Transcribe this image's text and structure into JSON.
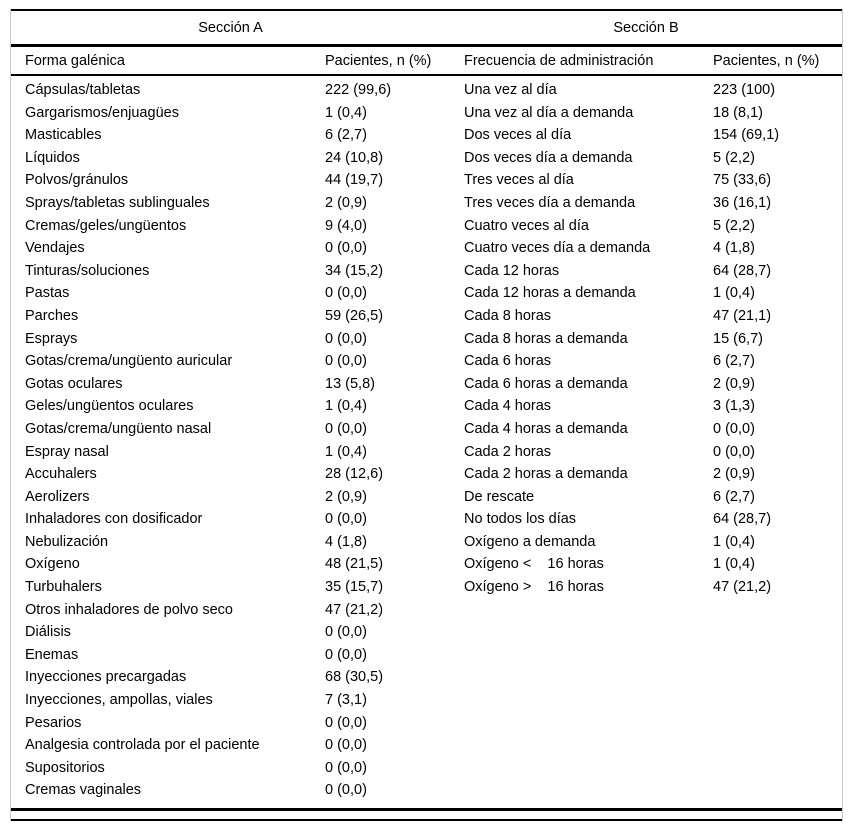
{
  "table": {
    "section_a": {
      "title": "Sección A",
      "label_header": "Forma galénica",
      "value_header": "Pacientes, n (%)",
      "rows": [
        {
          "label": "Cápsulas/tabletas",
          "value": "222 (99,6)"
        },
        {
          "label": "Gargarismos/enjuagües",
          "value": "1 (0,4)"
        },
        {
          "label": "Masticables",
          "value": "6 (2,7)"
        },
        {
          "label": "Líquidos",
          "value": "24 (10,8)"
        },
        {
          "label": "Polvos/gránulos",
          "value": "44 (19,7)"
        },
        {
          "label": "Sprays/tabletas sublinguales",
          "value": "2 (0,9)"
        },
        {
          "label": "Cremas/geles/ungüentos",
          "value": "9 (4,0)"
        },
        {
          "label": "Vendajes",
          "value": "0 (0,0)"
        },
        {
          "label": "Tinturas/soluciones",
          "value": "34 (15,2)"
        },
        {
          "label": "Pastas",
          "value": "0 (0,0)"
        },
        {
          "label": "Parches",
          "value": "59 (26,5)"
        },
        {
          "label": "Esprays",
          "value": "0 (0,0)"
        },
        {
          "label": "Gotas/crema/ungüento auricular",
          "value": "0 (0,0)"
        },
        {
          "label": "Gotas oculares",
          "value": "13 (5,8)"
        },
        {
          "label": "Geles/ungüentos oculares",
          "value": "1 (0,4)"
        },
        {
          "label": "Gotas/crema/ungüento nasal",
          "value": "0 (0,0)"
        },
        {
          "label": "Espray nasal",
          "value": "1 (0,4)"
        },
        {
          "label": "Accuhalers",
          "value": "28 (12,6)"
        },
        {
          "label": "Aerolizers",
          "value": "2 (0,9)"
        },
        {
          "label": "Inhaladores con dosificador",
          "value": "0 (0,0)"
        },
        {
          "label": "Nebulización",
          "value": "4 (1,8)"
        },
        {
          "label": "Oxígeno",
          "value": "48 (21,5)"
        },
        {
          "label": "Turbuhalers",
          "value": "35 (15,7)"
        },
        {
          "label": "Otros inhaladores de polvo seco",
          "value": "47 (21,2)"
        },
        {
          "label": "Diálisis",
          "value": "0 (0,0)"
        },
        {
          "label": "Enemas",
          "value": "0 (0,0)"
        },
        {
          "label": "Inyecciones precargadas",
          "value": "68 (30,5)"
        },
        {
          "label": "Inyecciones, ampollas, viales",
          "value": "7 (3,1)"
        },
        {
          "label": "Pesarios",
          "value": "0 (0,0)"
        },
        {
          "label": "Analgesia controlada por el paciente",
          "value": "0 (0,0)"
        },
        {
          "label": "Supositorios",
          "value": "0 (0,0)"
        },
        {
          "label": "Cremas vaginales",
          "value": "0 (0,0)"
        }
      ]
    },
    "section_b": {
      "title": "Sección B",
      "label_header": "Frecuencia de administración",
      "value_header": "Pacientes, n (%)",
      "rows": [
        {
          "label": "Una vez al día",
          "value": "223 (100)"
        },
        {
          "label": "Una vez al día a demanda",
          "value": "18 (8,1)"
        },
        {
          "label": "Dos veces al día",
          "value": "154 (69,1)"
        },
        {
          "label": "Dos veces día a demanda",
          "value": "5 (2,2)"
        },
        {
          "label": "Tres veces al día",
          "value": "75 (33,6)"
        },
        {
          "label": "Tres veces día a demanda",
          "value": "36 (16,1)"
        },
        {
          "label": "Cuatro veces al día",
          "value": "5 (2,2)"
        },
        {
          "label": "Cuatro veces día a demanda",
          "value": "4 (1,8)"
        },
        {
          "label": "Cada 12 horas",
          "value": "64 (28,7)"
        },
        {
          "label": "Cada 12 horas a demanda",
          "value": "1 (0,4)"
        },
        {
          "label": "Cada 8 horas",
          "value": "47 (21,1)"
        },
        {
          "label": "Cada 8 horas a demanda",
          "value": "15 (6,7)"
        },
        {
          "label": "Cada 6 horas",
          "value": "6 (2,7)"
        },
        {
          "label": "Cada 6 horas a demanda",
          "value": "2 (0,9)"
        },
        {
          "label": "Cada 4 horas",
          "value": "3 (1,3)"
        },
        {
          "label": "Cada 4 horas a demanda",
          "value": "0 (0,0)"
        },
        {
          "label": "Cada 2 horas",
          "value": "0 (0,0)"
        },
        {
          "label": "Cada 2 horas a demanda",
          "value": "2 (0,9)"
        },
        {
          "label": "De rescate",
          "value": "6 (2,7)"
        },
        {
          "label": "No todos los días",
          "value": "64 (28,7)"
        },
        {
          "label": "Oxígeno a demanda",
          "value": "1 (0,4)"
        },
        {
          "label": "Oxígeno <    16 horas",
          "value": "1 (0,4)"
        },
        {
          "label": "Oxígeno >    16 horas",
          "value": "47 (21,2)"
        }
      ]
    },
    "colors": {
      "rule": "#000000",
      "side_border": "#c8c8c8",
      "text": "#000000",
      "background": "#ffffff"
    }
  }
}
